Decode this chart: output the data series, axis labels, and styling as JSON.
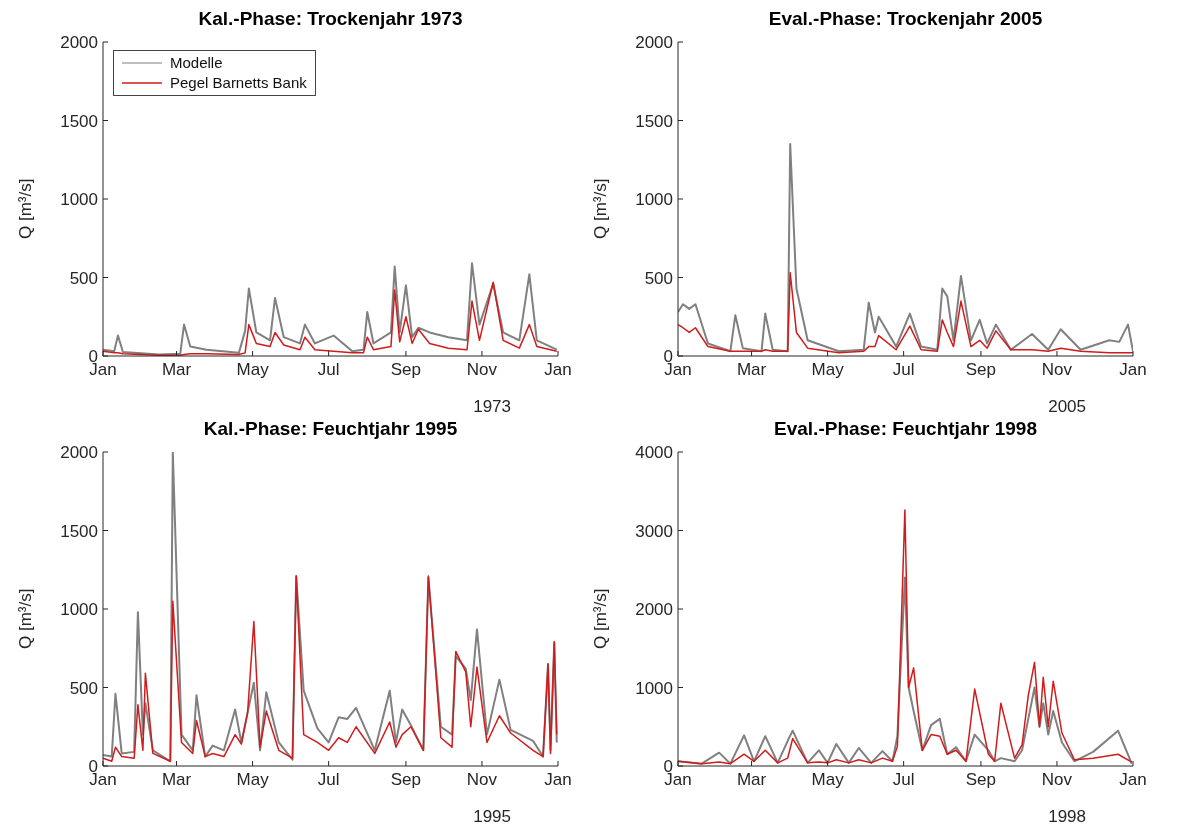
{
  "chart_data": [
    {
      "type": "line",
      "title": "Kal.-Phase: Trockenjahr 1973",
      "xlabel": "1973",
      "ylabel": "Q [m³/s]",
      "legend": "top left",
      "ylim": [
        0,
        2000
      ],
      "yticks": [
        0,
        500,
        1000,
        1500,
        2000
      ],
      "xlim": [
        "1973-01-01",
        "1974-01-01"
      ],
      "xticks": [
        {
          "value": "1973-01-01",
          "label": "Jan"
        },
        {
          "value": "1973-03-01",
          "label": "Mar"
        },
        {
          "value": "1973-05-01",
          "label": "May"
        },
        {
          "value": "1973-07-01",
          "label": "Jul"
        },
        {
          "value": "1973-09-01",
          "label": "Sep"
        },
        {
          "value": "1973-11-01",
          "label": "Nov"
        },
        {
          "value": "1974-01-01",
          "label": "Jan"
        }
      ],
      "x": [
        "1973-01-01",
        "1973-01-10",
        "1973-01-13",
        "1973-01-17",
        "1973-02-15",
        "1973-03-04",
        "1973-03-07",
        "1973-03-12",
        "1973-03-25",
        "1973-04-20",
        "1973-04-25",
        "1973-04-28",
        "1973-05-04",
        "1973-05-15",
        "1973-05-19",
        "1973-05-26",
        "1973-06-08",
        "1973-06-12",
        "1973-06-20",
        "1973-07-05",
        "1973-07-20",
        "1973-07-29",
        "1973-08-01",
        "1973-08-06",
        "1973-08-20",
        "1973-08-23",
        "1973-08-27",
        "1973-09-01",
        "1973-09-06",
        "1973-09-11",
        "1973-09-20",
        "1973-10-05",
        "1973-10-20",
        "1973-10-24",
        "1973-10-30",
        "1973-11-10",
        "1973-11-18",
        "1973-12-01",
        "1973-12-09",
        "1973-12-15",
        "1973-12-31"
      ],
      "series": [
        {
          "name": "Modelle",
          "color": "#808080",
          "values": [
            40,
            30,
            130,
            25,
            10,
            15,
            200,
            60,
            40,
            20,
            160,
            430,
            150,
            100,
            370,
            120,
            80,
            200,
            80,
            130,
            30,
            40,
            280,
            80,
            150,
            570,
            150,
            450,
            120,
            180,
            150,
            120,
            100,
            590,
            200,
            460,
            150,
            100,
            520,
            100,
            40
          ]
        },
        {
          "name": "Pegel Barnetts Bank",
          "color": "#d01c1c",
          "values": [
            30,
            20,
            20,
            15,
            5,
            5,
            10,
            15,
            15,
            10,
            20,
            200,
            80,
            60,
            150,
            70,
            40,
            120,
            40,
            30,
            20,
            20,
            120,
            40,
            60,
            420,
            90,
            250,
            80,
            170,
            80,
            50,
            40,
            350,
            100,
            470,
            100,
            50,
            200,
            60,
            30
          ]
        }
      ]
    },
    {
      "type": "line",
      "title": "Eval.-Phase: Trockenjahr 2005",
      "xlabel": "2005",
      "ylabel": "Q [m³/s]",
      "ylim": [
        0,
        2000
      ],
      "yticks": [
        0,
        500,
        1000,
        1500,
        2000
      ],
      "xlim": [
        "2005-01-01",
        "2006-01-01"
      ],
      "xticks": [
        {
          "value": "2005-01-01",
          "label": "Jan"
        },
        {
          "value": "2005-03-01",
          "label": "Mar"
        },
        {
          "value": "2005-05-01",
          "label": "May"
        },
        {
          "value": "2005-07-01",
          "label": "Jul"
        },
        {
          "value": "2005-09-01",
          "label": "Sep"
        },
        {
          "value": "2005-11-01",
          "label": "Nov"
        },
        {
          "value": "2006-01-01",
          "label": "Jan"
        }
      ],
      "x": [
        "2005-01-01",
        "2005-01-05",
        "2005-01-10",
        "2005-01-15",
        "2005-01-25",
        "2005-02-12",
        "2005-02-16",
        "2005-02-22",
        "2005-03-09",
        "2005-03-12",
        "2005-03-18",
        "2005-03-30",
        "2005-04-01",
        "2005-04-06",
        "2005-04-15",
        "2005-05-10",
        "2005-05-30",
        "2005-06-03",
        "2005-06-08",
        "2005-06-11",
        "2005-06-25",
        "2005-07-06",
        "2005-07-15",
        "2005-07-28",
        "2005-08-01",
        "2005-08-05",
        "2005-08-10",
        "2005-08-16",
        "2005-08-24",
        "2005-08-31",
        "2005-09-06",
        "2005-09-13",
        "2005-09-25",
        "2005-10-12",
        "2005-10-25",
        "2005-11-04",
        "2005-11-20",
        "2005-12-13",
        "2005-12-21",
        "2005-12-28",
        "2006-01-01"
      ],
      "series": [
        {
          "color": "#808080",
          "values": [
            280,
            330,
            300,
            330,
            80,
            30,
            260,
            50,
            30,
            270,
            40,
            30,
            1350,
            430,
            100,
            30,
            40,
            340,
            150,
            250,
            60,
            270,
            60,
            40,
            430,
            380,
            100,
            510,
            100,
            230,
            80,
            200,
            40,
            140,
            40,
            170,
            40,
            100,
            90,
            200,
            30
          ]
        },
        {
          "color": "#d01c1c",
          "values": [
            200,
            180,
            150,
            180,
            60,
            30,
            30,
            30,
            30,
            40,
            30,
            30,
            530,
            150,
            50,
            20,
            30,
            60,
            60,
            130,
            40,
            190,
            40,
            30,
            230,
            150,
            60,
            350,
            60,
            100,
            50,
            160,
            40,
            40,
            30,
            50,
            30,
            20,
            20,
            20,
            20
          ]
        }
      ]
    },
    {
      "type": "line",
      "title": "Kal.-Phase: Feuchtjahr 1995",
      "xlabel": "1995",
      "ylabel": "Q [m³/s]",
      "ylim": [
        0,
        2000
      ],
      "yticks": [
        0,
        500,
        1000,
        1500,
        2000
      ],
      "xlim": [
        "1995-01-01",
        "1996-01-01"
      ],
      "xticks": [
        {
          "value": "1995-01-01",
          "label": "Jan"
        },
        {
          "value": "1995-03-01",
          "label": "Mar"
        },
        {
          "value": "1995-05-01",
          "label": "May"
        },
        {
          "value": "1995-07-01",
          "label": "Jul"
        },
        {
          "value": "1995-09-01",
          "label": "Sep"
        },
        {
          "value": "1995-11-01",
          "label": "Nov"
        },
        {
          "value": "1996-01-01",
          "label": "Jan"
        }
      ],
      "x": [
        "1995-01-01",
        "1995-01-08",
        "1995-01-11",
        "1995-01-16",
        "1995-01-26",
        "1995-01-29",
        "1995-02-02",
        "1995-02-04",
        "1995-02-10",
        "1995-02-24",
        "1995-02-26",
        "1995-03-05",
        "1995-03-14",
        "1995-03-17",
        "1995-03-24",
        "1995-03-30",
        "1995-04-08",
        "1995-04-17",
        "1995-04-22",
        "1995-04-27",
        "1995-05-02",
        "1995-05-07",
        "1995-05-12",
        "1995-05-22",
        "1995-06-02",
        "1995-06-05",
        "1995-06-11",
        "1995-06-22",
        "1995-07-01",
        "1995-07-09",
        "1995-07-16",
        "1995-07-23",
        "1995-08-07",
        "1995-08-19",
        "1995-08-24",
        "1995-08-29",
        "1995-09-05",
        "1995-09-15",
        "1995-09-19",
        "1995-09-29",
        "1995-10-08",
        "1995-10-11",
        "1995-10-19",
        "1995-10-23",
        "1995-10-28",
        "1995-11-05",
        "1995-11-15",
        "1995-11-24",
        "1995-12-12",
        "1995-12-20",
        "1995-12-24",
        "1995-12-26",
        "1995-12-29",
        "1995-12-31"
      ],
      "series": [
        {
          "color": "#808080",
          "values": [
            70,
            60,
            460,
            80,
            90,
            980,
            200,
            400,
            100,
            30,
            2000,
            200,
            100,
            450,
            60,
            130,
            100,
            360,
            150,
            340,
            530,
            100,
            470,
            150,
            40,
            1210,
            480,
            240,
            150,
            310,
            300,
            370,
            100,
            480,
            150,
            360,
            260,
            100,
            1200,
            250,
            200,
            700,
            620,
            420,
            870,
            200,
            550,
            230,
            160,
            60,
            650,
            100,
            790,
            150
          ]
        },
        {
          "color": "#d01c1c",
          "values": [
            50,
            30,
            120,
            60,
            50,
            390,
            100,
            590,
            80,
            30,
            1050,
            150,
            80,
            290,
            60,
            80,
            60,
            200,
            140,
            340,
            920,
            120,
            350,
            100,
            50,
            1210,
            200,
            150,
            100,
            180,
            150,
            250,
            80,
            280,
            120,
            200,
            250,
            100,
            1210,
            180,
            120,
            730,
            600,
            250,
            630,
            150,
            320,
            210,
            100,
            60,
            650,
            80,
            790,
            200
          ]
        }
      ]
    },
    {
      "type": "line",
      "title": "Eval.-Phase: Feuchtjahr 1998",
      "xlabel": "1998",
      "ylabel": "Q [m³/s]",
      "ylim": [
        0,
        4000
      ],
      "yticks": [
        0,
        1000,
        2000,
        3000,
        4000
      ],
      "xlim": [
        "1998-01-01",
        "1999-01-01"
      ],
      "xticks": [
        {
          "value": "1998-01-01",
          "label": "Jan"
        },
        {
          "value": "1998-03-01",
          "label": "Mar"
        },
        {
          "value": "1998-05-01",
          "label": "May"
        },
        {
          "value": "1998-07-01",
          "label": "Jul"
        },
        {
          "value": "1998-09-01",
          "label": "Sep"
        },
        {
          "value": "1998-11-01",
          "label": "Nov"
        },
        {
          "value": "1999-01-01",
          "label": "Jan"
        }
      ],
      "x": [
        "1998-01-01",
        "1998-01-20",
        "1998-02-03",
        "1998-02-12",
        "1998-02-23",
        "1998-03-03",
        "1998-03-12",
        "1998-03-22",
        "1998-03-30",
        "1998-04-03",
        "1998-04-15",
        "1998-04-24",
        "1998-05-01",
        "1998-05-08",
        "1998-05-18",
        "1998-05-26",
        "1998-06-05",
        "1998-06-14",
        "1998-06-22",
        "1998-06-26",
        "1998-07-02",
        "1998-07-05",
        "1998-07-09",
        "1998-07-16",
        "1998-07-23",
        "1998-07-30",
        "1998-08-05",
        "1998-08-12",
        "1998-08-20",
        "1998-08-27",
        "1998-09-07",
        "1998-09-12",
        "1998-09-17",
        "1998-09-28",
        "1998-10-04",
        "1998-10-09",
        "1998-10-14",
        "1998-10-18",
        "1998-10-21",
        "1998-10-25",
        "1998-10-29",
        "1998-11-05",
        "1998-11-15",
        "1998-11-30",
        "1998-12-20",
        "1998-12-31"
      ],
      "series": [
        {
          "color": "#808080",
          "values": [
            60,
            30,
            170,
            30,
            390,
            60,
            380,
            40,
            320,
            450,
            40,
            200,
            40,
            280,
            40,
            230,
            40,
            190,
            60,
            380,
            2400,
            1000,
            700,
            200,
            520,
            600,
            150,
            240,
            60,
            400,
            200,
            60,
            100,
            60,
            200,
            600,
            1000,
            500,
            800,
            400,
            700,
            300,
            60,
            180,
            450,
            30
          ]
        },
        {
          "color": "#d01c1c",
          "values": [
            60,
            30,
            50,
            30,
            150,
            60,
            200,
            40,
            100,
            350,
            40,
            50,
            40,
            80,
            40,
            80,
            40,
            100,
            60,
            250,
            3260,
            1000,
            1250,
            200,
            400,
            380,
            150,
            200,
            60,
            980,
            150,
            60,
            800,
            100,
            270,
            900,
            1320,
            500,
            1130,
            500,
            1080,
            420,
            80,
            100,
            150,
            50
          ]
        }
      ]
    }
  ]
}
